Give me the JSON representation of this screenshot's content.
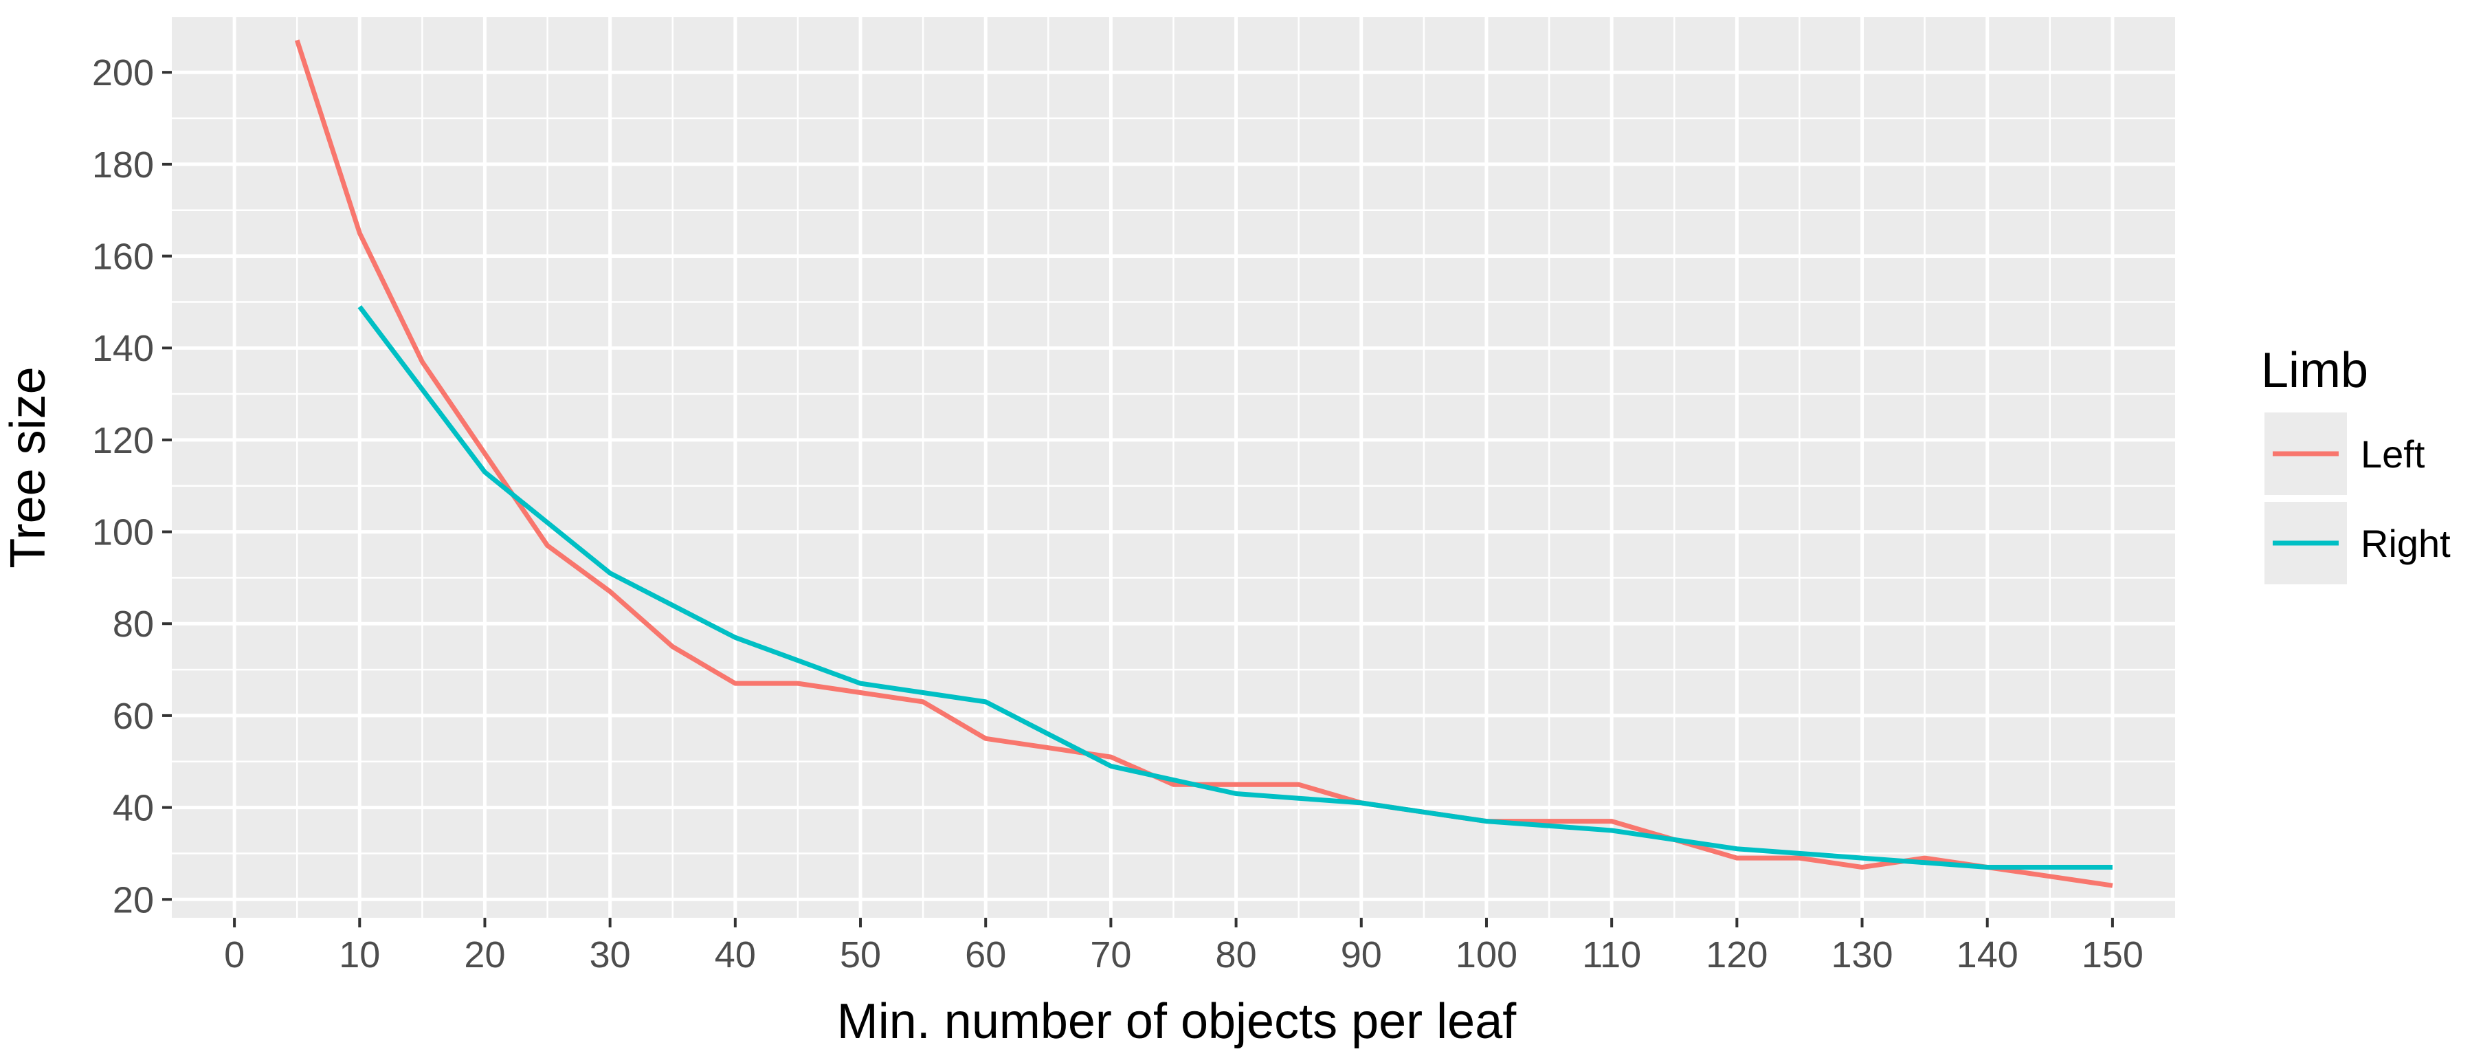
{
  "chart_data": {
    "type": "line",
    "title": "",
    "xlabel": "Min. number of objects per leaf",
    "ylabel": "Tree size",
    "xlim": [
      -5,
      155
    ],
    "ylim": [
      16,
      212
    ],
    "x_ticks": [
      0,
      10,
      20,
      30,
      40,
      50,
      60,
      70,
      80,
      90,
      100,
      110,
      120,
      130,
      140,
      150
    ],
    "y_ticks": [
      20,
      40,
      60,
      80,
      100,
      120,
      140,
      160,
      180,
      200
    ],
    "grid": true,
    "legend": {
      "title": "Limb",
      "position": "right"
    },
    "series": [
      {
        "name": "Left",
        "color": "#F8766D",
        "x": [
          5,
          10,
          15,
          20,
          25,
          30,
          35,
          40,
          45,
          50,
          55,
          60,
          65,
          70,
          75,
          80,
          85,
          90,
          95,
          100,
          105,
          110,
          115,
          120,
          125,
          130,
          135,
          140,
          145,
          150
        ],
        "y": [
          207,
          165,
          137,
          117,
          97,
          87,
          75,
          67,
          67,
          65,
          63,
          55,
          53,
          51,
          45,
          45,
          45,
          41,
          39,
          37,
          37,
          37,
          33,
          29,
          29,
          27,
          29,
          27,
          25,
          23
        ]
      },
      {
        "name": "Right",
        "color": "#00BFC4",
        "x": [
          10,
          15,
          20,
          25,
          30,
          35,
          40,
          45,
          50,
          55,
          60,
          65,
          70,
          75,
          80,
          85,
          90,
          95,
          100,
          105,
          110,
          115,
          120,
          125,
          130,
          135,
          140,
          145,
          150
        ],
        "y": [
          149,
          131,
          113,
          102,
          91,
          84,
          77,
          72,
          67,
          65,
          63,
          56,
          49,
          46,
          43,
          42,
          41,
          39,
          37,
          36,
          35,
          33,
          31,
          30,
          29,
          28,
          27,
          27,
          27
        ]
      }
    ]
  }
}
